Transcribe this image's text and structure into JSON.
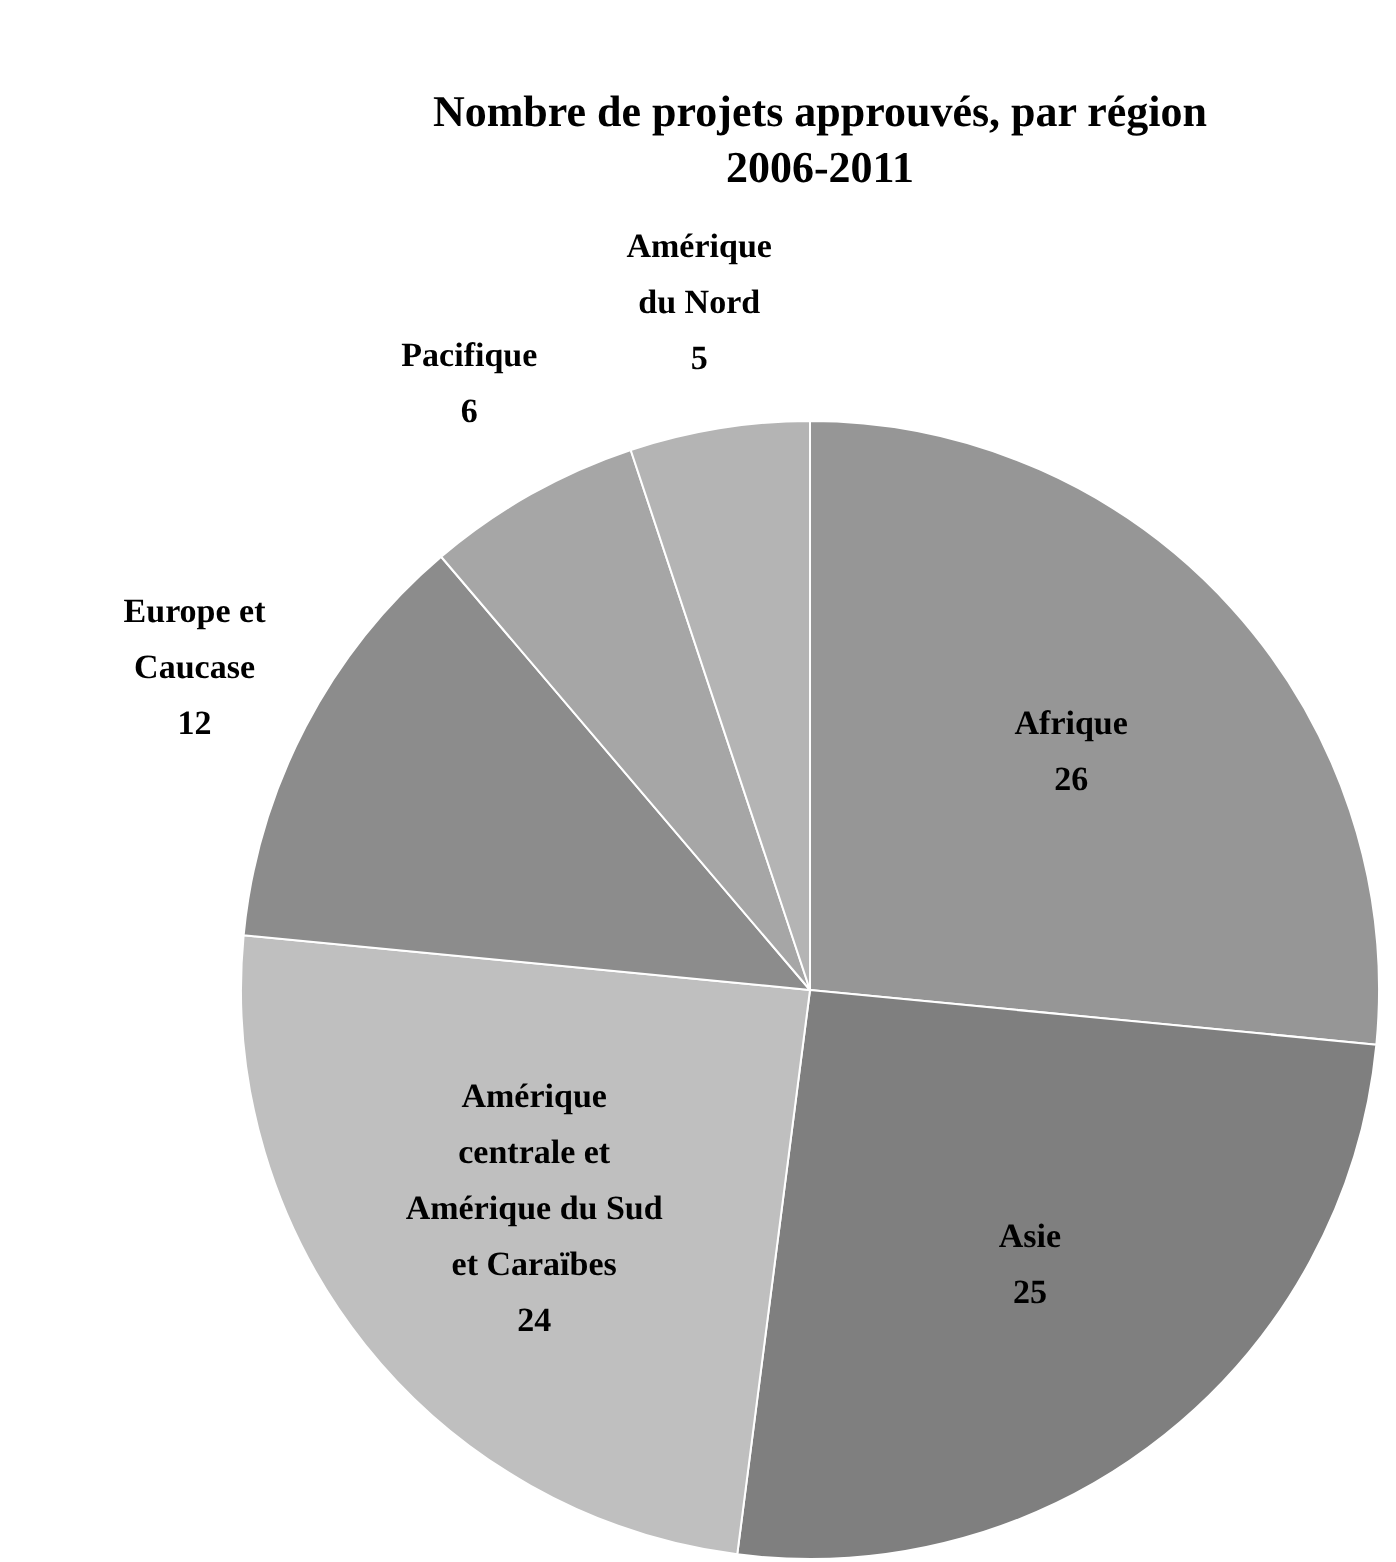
{
  "chart_data": {
    "type": "pie",
    "title": "Nombre de projets approuvés, par région",
    "subtitle": "2006-2011",
    "categories": [
      "Afrique",
      "Asie",
      "Amérique\ncentrale et\nAmérique du Sud\net Caraïbes",
      "Europe et\nCaucase",
      "Pacifique",
      "Amérique\ndu Nord"
    ],
    "values": [
      26,
      25,
      24,
      12,
      6,
      5
    ],
    "colors": [
      "#969696",
      "#7f7f7f",
      "#bfbfbf",
      "#8c8c8c",
      "#a6a6a6",
      "#b4b4b4"
    ],
    "data_labels": true,
    "legend": false
  }
}
